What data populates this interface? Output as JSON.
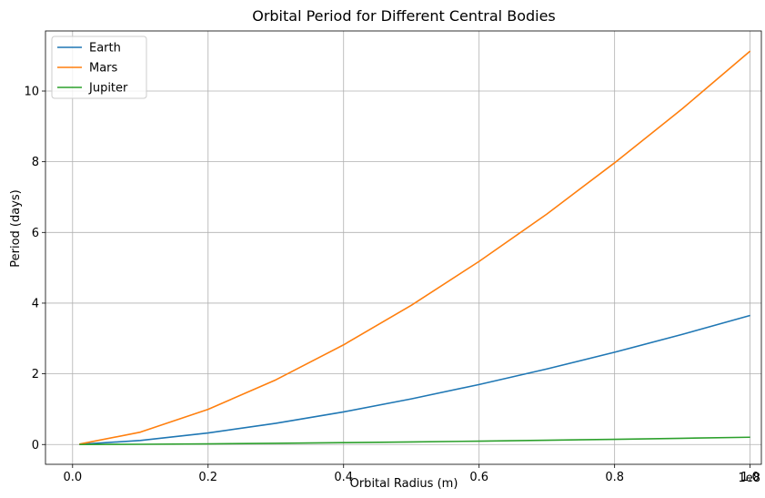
{
  "chart_data": {
    "type": "line",
    "title": "Orbital Period for Different Central Bodies",
    "xlabel": "Orbital Radius (m)",
    "ylabel": "Period (days)",
    "x_offset_label": "1e8",
    "x_scale": 100000000,
    "xlim": [
      -0.04,
      1.0166
    ],
    "ylim": [
      -0.56,
      11.7
    ],
    "x_ticks": [
      0.0,
      0.2,
      0.4,
      0.6,
      0.8,
      1.0
    ],
    "x_tick_labels": [
      "0.0",
      "0.2",
      "0.4",
      "0.6",
      "0.8",
      "1.0"
    ],
    "y_ticks": [
      0,
      2,
      4,
      6,
      8,
      10
    ],
    "y_tick_labels": [
      "0",
      "2",
      "4",
      "6",
      "8",
      "10"
    ],
    "grid": true,
    "legend_position": "top-left",
    "series": [
      {
        "name": "Earth",
        "color": "#1f77b4",
        "x": [
          0.01,
          0.1,
          0.2,
          0.3,
          0.4,
          0.5,
          0.6,
          0.7,
          0.8,
          0.9,
          1.0
        ],
        "values": [
          0.004,
          0.115,
          0.326,
          0.6,
          0.923,
          1.291,
          1.697,
          2.138,
          2.611,
          3.116,
          3.65
        ]
      },
      {
        "name": "Mars",
        "color": "#ff7f0e",
        "x": [
          0.01,
          0.1,
          0.2,
          0.3,
          0.4,
          0.5,
          0.6,
          0.7,
          0.8,
          0.9,
          1.0
        ],
        "values": [
          0.011,
          0.35,
          0.994,
          1.83,
          2.82,
          3.94,
          5.18,
          6.52,
          7.97,
          9.5,
          11.13
        ]
      },
      {
        "name": "Jupiter",
        "color": "#2ca02c",
        "x": [
          0.01,
          0.1,
          0.2,
          0.3,
          0.4,
          0.5,
          0.6,
          0.7,
          0.8,
          0.9,
          1.0
        ],
        "values": [
          0.0002,
          0.0065,
          0.0184,
          0.0339,
          0.0522,
          0.073,
          0.0959,
          0.1208,
          0.1476,
          0.1761,
          0.2063
        ]
      }
    ]
  }
}
